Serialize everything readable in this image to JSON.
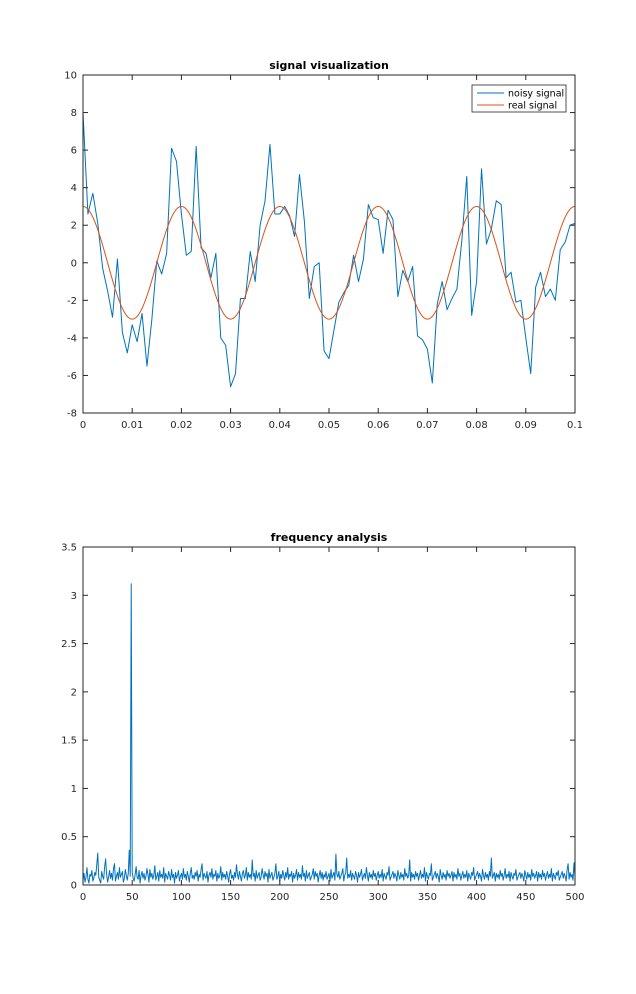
{
  "chart_data": [
    {
      "type": "line",
      "title": "signal visualization",
      "xlabel": "",
      "ylabel": "",
      "xlim": [
        0,
        0.1
      ],
      "ylim": [
        -8,
        10
      ],
      "xticks": [
        0,
        0.01,
        0.02,
        0.03,
        0.04,
        0.05,
        0.06,
        0.07,
        0.08,
        0.09,
        0.1
      ],
      "xtick_labels": [
        "0",
        "0.01",
        "0.02",
        "0.03",
        "0.04",
        "0.05",
        "0.06",
        "0.07",
        "0.08",
        "0.09",
        "0.1"
      ],
      "yticks": [
        -8,
        -6,
        -4,
        -2,
        0,
        2,
        4,
        6,
        8,
        10
      ],
      "ytick_labels": [
        "-8",
        "-6",
        "-4",
        "-2",
        "0",
        "2",
        "4",
        "6",
        "8",
        "10"
      ],
      "grid": false,
      "legend_position": "top-right",
      "series": [
        {
          "name": "noisy signal",
          "color": "#0072BD",
          "x_start": 0,
          "x_step": 0.001,
          "values": [
            8.0,
            2.6,
            3.7,
            2.1,
            -0.3,
            -1.5,
            -2.9,
            0.2,
            -3.7,
            -4.8,
            -3.3,
            -4.2,
            -2.7,
            -5.5,
            -3.0,
            0.1,
            -0.6,
            0.5,
            6.1,
            5.4,
            2.6,
            0.4,
            0.6,
            6.2,
            0.8,
            0.5,
            -0.8,
            0.5,
            -4.0,
            -4.4,
            -6.6,
            -5.9,
            -1.9,
            -1.9,
            0.6,
            -1.0,
            2.0,
            3.3,
            6.3,
            2.6,
            2.6,
            3.0,
            2.5,
            1.4,
            4.7,
            2.2,
            -1.9,
            -0.2,
            0.0,
            -4.7,
            -5.1,
            -3.6,
            -2.1,
            -1.6,
            -1.2,
            0.4,
            -1.0,
            0.2,
            3.1,
            2.4,
            2.3,
            0.5,
            2.8,
            2.3,
            -1.8,
            -0.4,
            -1.0,
            -0.2,
            -3.9,
            -4.1,
            -4.6,
            -6.4,
            -2.2,
            -1.0,
            -2.5,
            -1.9,
            -1.4,
            1.2,
            4.6,
            -2.8,
            -1.0,
            5.0,
            1.0,
            1.8,
            3.3,
            3.1,
            -0.8,
            -0.5,
            -2.1,
            -2.0,
            -4.0,
            -5.9,
            -1.3,
            -0.5,
            -1.8,
            -1.4,
            -2.0,
            0.7,
            1.1,
            2.0,
            2.1
          ]
        },
        {
          "name": "real signal",
          "color": "#D95319",
          "function": "3*cos(2*pi*50*t)"
        }
      ]
    },
    {
      "type": "line",
      "title": "frequency analysis",
      "xlabel": "",
      "ylabel": "",
      "xlim": [
        0,
        500
      ],
      "ylim": [
        0,
        3.5
      ],
      "xticks": [
        0,
        50,
        100,
        150,
        200,
        250,
        300,
        350,
        400,
        450,
        500
      ],
      "xtick_labels": [
        "0",
        "50",
        "100",
        "150",
        "200",
        "250",
        "300",
        "350",
        "400",
        "450",
        "500"
      ],
      "yticks": [
        0,
        0.5,
        1,
        1.5,
        2,
        2.5,
        3,
        3.5
      ],
      "ytick_labels": [
        "0",
        "0.5",
        "1",
        "1.5",
        "2",
        "2.5",
        "3",
        "3.5"
      ],
      "grid": false,
      "series": [
        {
          "color": "#0072BD",
          "peak_x": 49,
          "peak_value": 3.12,
          "noise_floor": "about 0 to 0.34, mean about 0.1",
          "x_start": 0,
          "x_step": 1,
          "values": [
            0.05,
            0.12,
            0.03,
            0.08,
            0.18,
            0.06,
            0.02,
            0.11,
            0.09,
            0.15,
            0.04,
            0.07,
            0.13,
            0.1,
            0.21,
            0.33,
            0.08,
            0.05,
            0.02,
            0.14,
            0.09,
            0.06,
            0.19,
            0.27,
            0.11,
            0.03,
            0.08,
            0.15,
            0.07,
            0.12,
            0.05,
            0.17,
            0.22,
            0.04,
            0.09,
            0.13,
            0.06,
            0.18,
            0.08,
            0.11,
            0.14,
            0.03,
            0.07,
            0.16,
            0.1,
            0.05,
            0.12,
            0.36,
            0.09,
            3.12,
            0.13,
            0.07,
            0.04,
            0.11,
            0.19,
            0.08,
            0.06,
            0.15,
            0.02,
            0.1,
            0.14,
            0.07,
            0.12,
            0.05,
            0.09,
            0.17,
            0.11,
            0.03,
            0.16,
            0.08,
            0.12,
            0.06,
            0.1,
            0.2,
            0.05,
            0.09,
            0.13,
            0.04,
            0.15,
            0.08,
            0.11,
            0.07,
            0.18,
            0.03,
            0.12,
            0.09,
            0.06,
            0.14,
            0.1,
            0.05,
            0.16,
            0.08,
            0.11,
            0.02,
            0.13,
            0.07,
            0.1,
            0.15,
            0.04,
            0.09,
            0.12,
            0.06,
            0.17,
            0.08,
            0.11,
            0.05,
            0.14,
            0.09,
            0.03,
            0.12,
            0.18,
            0.07,
            0.1,
            0.06,
            0.13,
            0.09,
            0.15,
            0.04,
            0.11,
            0.08,
            0.16,
            0.22,
            0.05,
            0.12,
            0.09,
            0.07,
            0.14,
            0.03,
            0.1,
            0.13,
            0.08,
            0.17,
            0.06,
            0.11,
            0.09,
            0.15,
            0.04,
            0.12,
            0.07,
            0.1,
            0.19,
            0.05,
            0.13,
            0.08,
            0.11,
            0.06,
            0.14,
            0.09,
            0.03,
            0.12,
            0.16,
            0.07,
            0.1,
            0.05,
            0.13,
            0.08,
            0.21,
            0.11,
            0.06,
            0.14,
            0.09,
            0.04,
            0.12,
            0.15,
            0.07,
            0.1,
            0.18,
            0.05,
            0.13,
            0.08,
            0.11,
            0.06,
            0.26,
            0.09,
            0.12,
            0.04,
            0.15,
            0.07,
            0.1,
            0.13,
            0.05,
            0.08,
            0.17,
            0.11,
            0.06,
            0.14,
            0.09,
            0.12,
            0.03,
            0.16,
            0.07,
            0.1,
            0.13,
            0.05,
            0.08,
            0.12,
            0.22,
            0.06,
            0.09,
            0.14,
            0.04,
            0.11,
            0.07,
            0.15,
            0.1,
            0.05,
            0.13,
            0.08,
            0.18,
            0.06,
            0.11,
            0.09,
            0.14,
            0.03,
            0.12,
            0.07,
            0.1,
            0.16,
            0.05,
            0.13,
            0.08,
            0.11,
            0.06,
            0.2,
            0.09,
            0.12,
            0.04,
            0.15,
            0.07,
            0.1,
            0.13,
            0.05,
            0.08,
            0.11,
            0.17,
            0.06,
            0.14,
            0.09,
            0.12,
            0.03,
            0.1,
            0.15,
            0.07,
            0.13,
            0.05,
            0.11,
            0.08,
            0.14,
            0.06,
            0.09,
            0.12,
            0.04,
            0.16,
            0.07,
            0.1,
            0.13,
            0.05,
            0.32,
            0.11,
            0.08,
            0.14,
            0.06,
            0.09,
            0.12,
            0.17,
            0.04,
            0.1,
            0.13,
            0.28,
            0.07,
            0.11,
            0.08,
            0.15,
            0.05,
            0.12,
            0.09,
            0.06,
            0.14,
            0.1,
            0.03,
            0.13,
            0.08,
            0.11,
            0.16,
            0.05,
            0.09,
            0.12,
            0.07,
            0.18,
            0.1,
            0.04,
            0.13,
            0.08,
            0.11,
            0.06,
            0.15,
            0.09,
            0.12,
            0.05,
            0.1,
            0.14,
            0.07,
            0.11,
            0.08,
            0.16,
            0.04,
            0.12,
            0.09,
            0.06,
            0.13,
            0.1,
            0.19,
            0.05,
            0.08,
            0.11,
            0.14,
            0.07,
            0.12,
            0.09,
            0.04,
            0.15,
            0.1,
            0.06,
            0.13,
            0.08,
            0.11,
            0.05,
            0.17,
            0.09,
            0.12,
            0.07,
            0.1,
            0.26,
            0.04,
            0.13,
            0.08,
            0.11,
            0.06,
            0.14,
            0.09,
            0.12,
            0.05,
            0.1,
            0.15,
            0.07,
            0.11,
            0.08,
            0.18,
            0.04,
            0.13,
            0.09,
            0.06,
            0.12,
            0.1,
            0.22,
            0.05,
            0.08,
            0.11,
            0.14,
            0.07,
            0.12,
            0.09,
            0.03,
            0.16,
            0.1,
            0.06,
            0.13,
            0.08,
            0.11,
            0.05,
            0.15,
            0.09,
            0.12,
            0.07,
            0.1,
            0.14,
            0.04,
            0.13,
            0.08,
            0.11,
            0.06,
            0.17,
            0.09,
            0.12,
            0.05,
            0.1,
            0.14,
            0.07,
            0.11,
            0.08,
            0.15,
            0.04,
            0.12,
            0.09,
            0.06,
            0.13,
            0.1,
            0.18,
            0.05,
            0.08,
            0.11,
            0.14,
            0.07,
            0.12,
            0.09,
            0.04,
            0.16,
            0.1,
            0.06,
            0.13,
            0.08,
            0.11,
            0.05,
            0.14,
            0.09,
            0.28,
            0.07,
            0.1,
            0.13,
            0.04,
            0.12,
            0.08,
            0.11,
            0.06,
            0.15,
            0.09,
            0.12,
            0.05,
            0.1,
            0.17,
            0.07,
            0.11,
            0.08,
            0.14,
            0.04,
            0.13,
            0.09,
            0.06,
            0.12,
            0.1,
            0.16,
            0.05,
            0.08,
            0.11,
            0.13,
            0.07,
            0.12,
            0.09,
            0.04,
            0.15,
            0.1,
            0.06,
            0.13,
            0.08,
            0.11,
            0.05,
            0.16,
            0.09,
            0.12,
            0.07,
            0.1,
            0.14,
            0.04,
            0.13,
            0.08,
            0.11,
            0.06,
            0.15,
            0.09,
            0.12,
            0.05,
            0.1,
            0.14,
            0.07,
            0.11,
            0.08,
            0.17,
            0.04,
            0.12,
            0.09,
            0.06,
            0.13,
            0.1,
            0.15,
            0.05,
            0.08,
            0.11,
            0.14,
            0.07,
            0.12,
            0.09,
            0.04,
            0.16,
            0.22,
            0.06,
            0.13,
            0.08,
            0.11,
            0.05,
            0.23,
            0.09,
            0.12,
            0.07
          ]
        }
      ]
    }
  ]
}
